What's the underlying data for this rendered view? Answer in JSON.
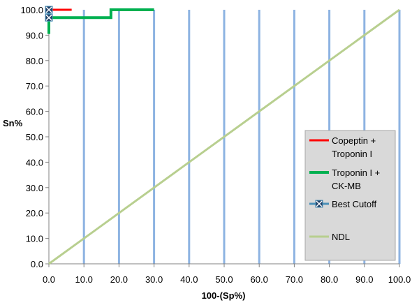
{
  "chart_data": {
    "type": "line",
    "title": "",
    "xlabel": "100-(Sp%)",
    "ylabel": "Sn%",
    "xlim": [
      0,
      100
    ],
    "ylim": [
      0,
      100
    ],
    "x_ticks": [
      "0.0",
      "10.0",
      "20.0",
      "30.0",
      "40.0",
      "50.0",
      "60.0",
      "70.0",
      "80.0",
      "90.0",
      "100.0"
    ],
    "y_ticks": [
      "0.0",
      "10.0",
      "20.0",
      "30.0",
      "40.0",
      "50.0",
      "60.0",
      "70.0",
      "80.0",
      "90.0",
      "100.0"
    ],
    "grid": "vertical",
    "legend_position": "right",
    "series": [
      {
        "name": "Copeptin + Troponin I",
        "color": "#ff0000",
        "points": [
          [
            0,
            96
          ],
          [
            0,
            100
          ],
          [
            6.5,
            100
          ]
        ]
      },
      {
        "name": "Troponin I + CK-MB",
        "color": "#00b050",
        "points": [
          [
            0,
            90.5
          ],
          [
            0,
            96.9
          ],
          [
            17.7,
            96.9
          ],
          [
            17.7,
            100
          ],
          [
            30,
            100
          ]
        ]
      },
      {
        "name": "Best Cutoff",
        "color": "#4a90b8",
        "points": [
          [
            0,
            100
          ],
          [
            0,
            96.9
          ]
        ]
      },
      {
        "name": "NDL",
        "color": "#b8cf8f",
        "points": [
          [
            0,
            0
          ],
          [
            100,
            100
          ]
        ]
      }
    ],
    "legend_labels": [
      [
        "Copeptin +",
        "Troponin I"
      ],
      [
        "Troponin I +",
        "CK-MB"
      ],
      [
        "Best Cutoff"
      ],
      [
        "NDL"
      ]
    ],
    "colors": {
      "grid": "#8db3e2",
      "axis": "#808080",
      "legend_bg": "#d9d9d9"
    }
  }
}
